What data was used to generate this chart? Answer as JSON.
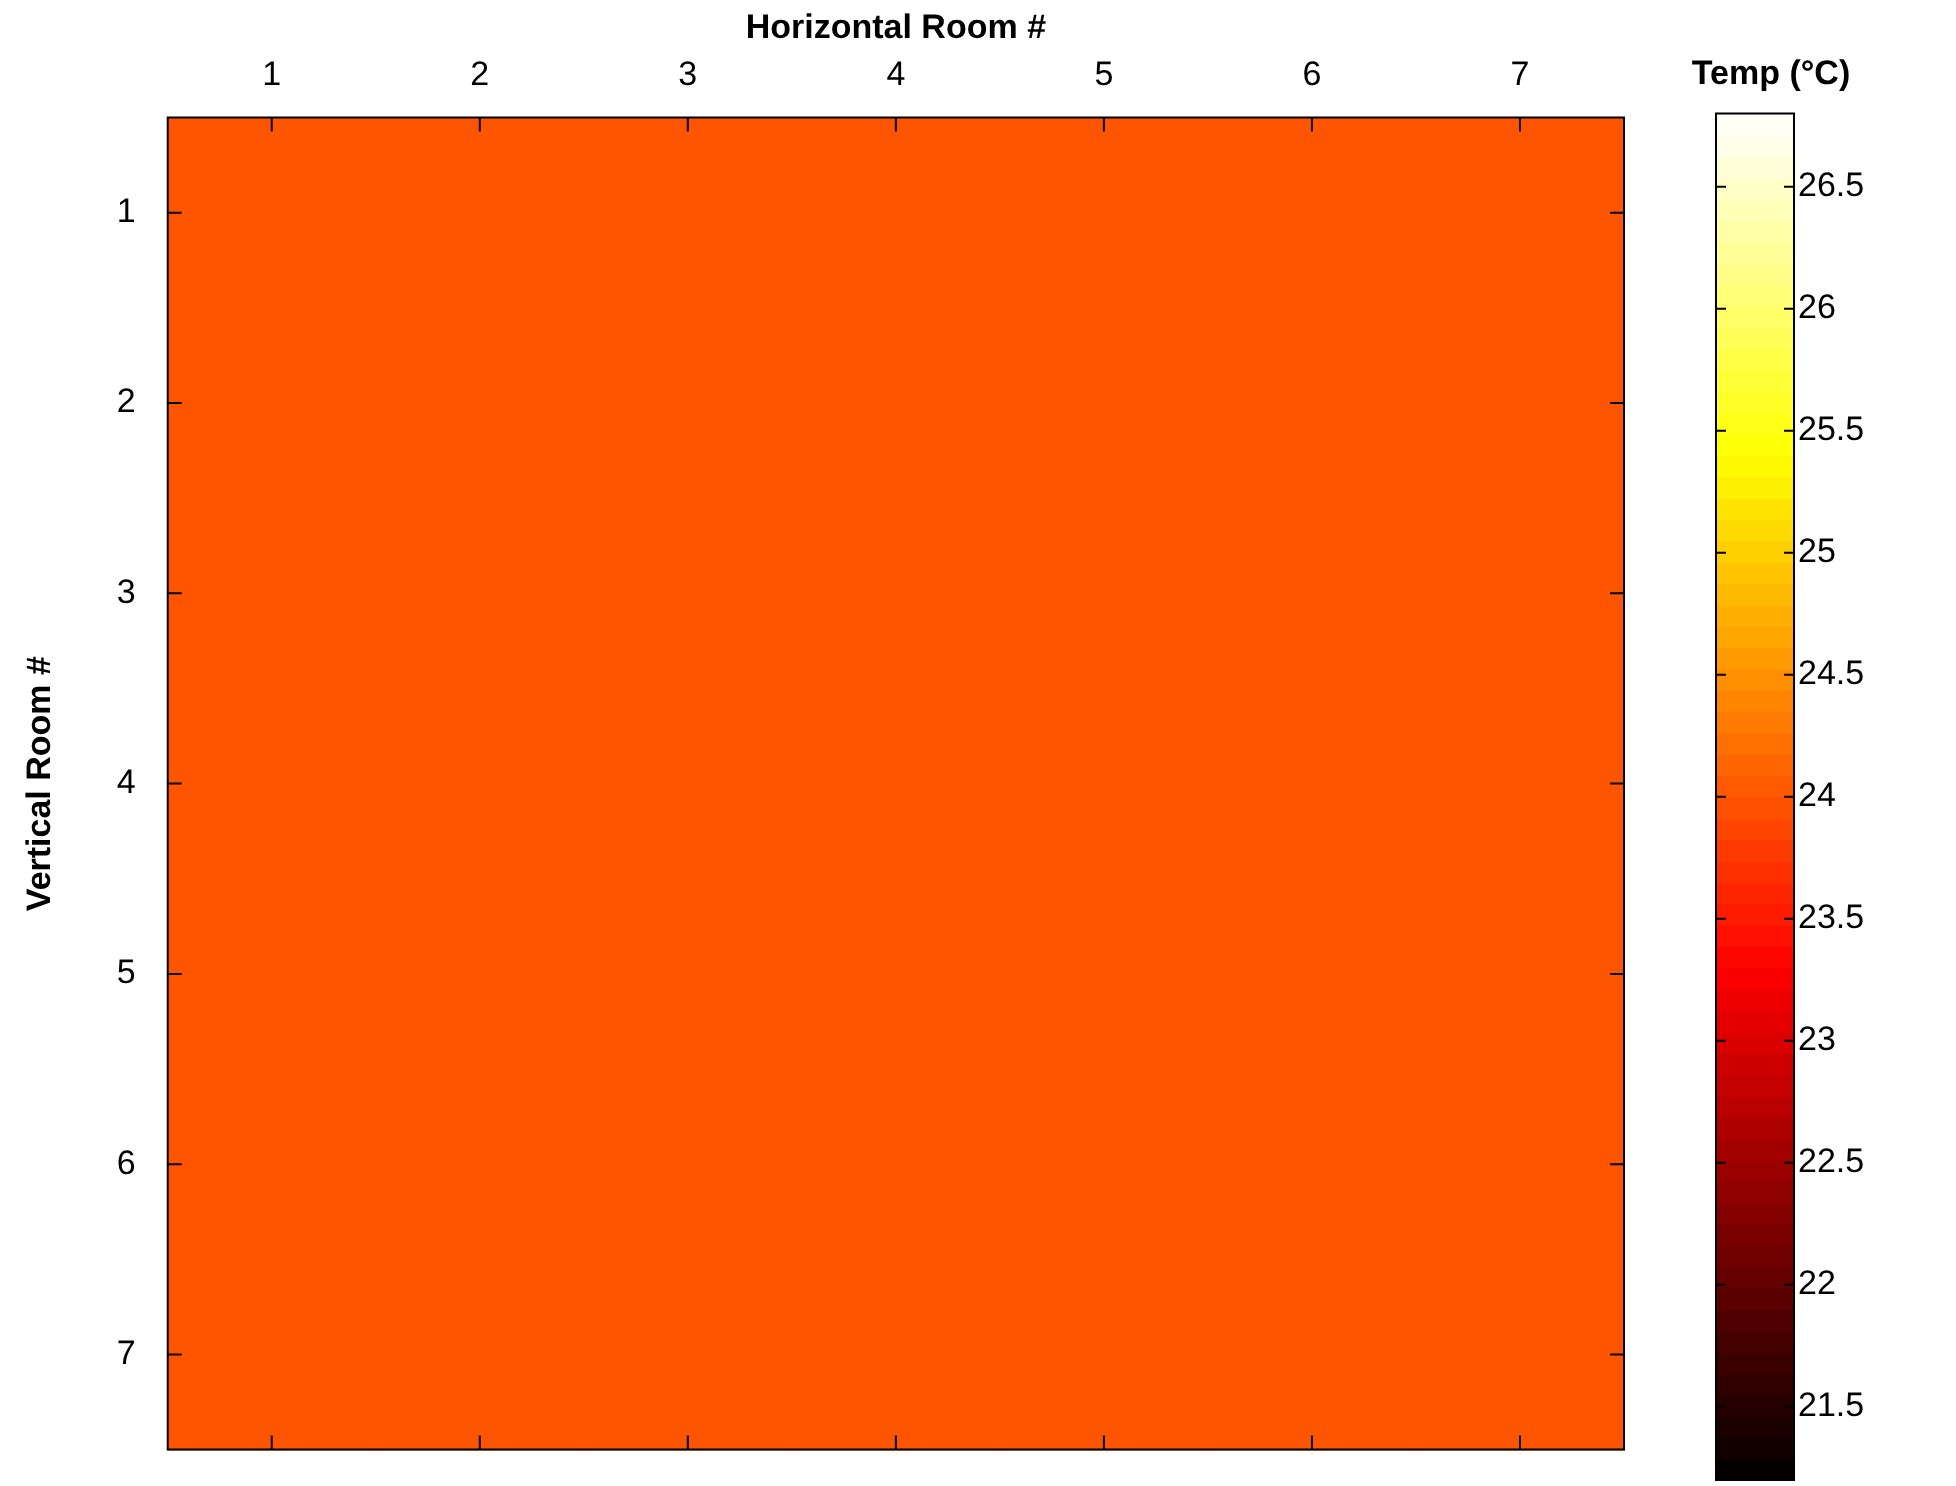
{
  "chart_data": {
    "type": "heatmap",
    "xlabel": "Horizontal Room #",
    "ylabel": "Vertical Room #",
    "clabel": "Temp (°C)",
    "categories": [
      "1",
      "2",
      "3",
      "4",
      "5",
      "6",
      "7"
    ],
    "y_categories": [
      "1",
      "2",
      "3",
      "4",
      "5",
      "6",
      "7"
    ],
    "cells": [
      [
        24,
        24,
        24,
        24,
        24,
        24,
        24
      ],
      [
        24,
        24,
        24,
        24,
        24,
        24,
        24
      ],
      [
        24,
        24,
        24,
        24,
        24,
        24,
        24
      ],
      [
        24,
        24,
        24,
        24,
        24,
        24,
        24
      ],
      [
        24,
        24,
        24,
        24,
        24,
        24,
        24
      ],
      [
        24,
        24,
        24,
        24,
        24,
        24,
        24
      ],
      [
        24,
        24,
        24,
        24,
        24,
        24,
        24
      ]
    ],
    "clim": [
      21.2,
      26.8
    ],
    "cticks": [
      21.5,
      22,
      22.5,
      23,
      23.5,
      24,
      24.5,
      25,
      25.5,
      26,
      26.5
    ]
  }
}
